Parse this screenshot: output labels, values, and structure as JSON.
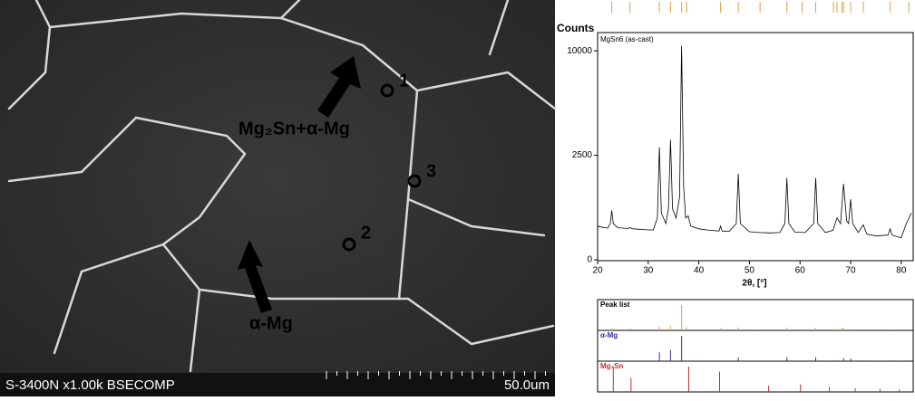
{
  "sem": {
    "labels": [
      "Mg₂Sn+α-Mg",
      "α-Mg"
    ],
    "points": [
      "1",
      "2",
      "3"
    ],
    "footer_left": "S-3400N x1.00k BSECOMP",
    "footer_right": "50.0um"
  },
  "chart_data": {
    "type": "line",
    "y_label": "Counts",
    "x_label": "2θ, [°]",
    "yscale": "sqrt",
    "x": [
      20,
      21,
      22,
      22.5,
      22.8,
      23.1,
      24,
      25,
      26,
      26.4,
      27,
      28,
      29,
      30,
      31,
      31.8,
      32.2,
      32.6,
      33.5,
      34.0,
      34.4,
      34.8,
      35.5,
      36.2,
      36.6,
      37.0,
      37.4,
      37.9,
      38.4,
      40,
      42,
      44,
      44.3,
      44.6,
      46,
      47.4,
      47.8,
      48.2,
      50,
      52,
      54,
      56,
      57.0,
      57.4,
      57.8,
      59,
      61,
      62.7,
      63.1,
      63.5,
      65,
      66.5,
      67.3,
      68.0,
      68.6,
      69.2,
      69.6,
      70.0,
      70.4,
      71.5,
      72.5,
      73.2,
      75,
      77.4,
      77.8,
      78.2,
      80,
      81,
      82
    ],
    "series": [
      {
        "name": "MgSn6 (as-cast)",
        "color": "#000000",
        "values": [
          260,
          240,
          230,
          300,
          560,
          300,
          235,
          230,
          225,
          235,
          220,
          215,
          210,
          205,
          205,
          400,
          2900,
          500,
          300,
          600,
          3300,
          600,
          400,
          900,
          10500,
          1200,
          400,
          440,
          260,
          220,
          200,
          190,
          260,
          190,
          185,
          300,
          1700,
          300,
          180,
          170,
          165,
          170,
          300,
          1530,
          300,
          175,
          170,
          300,
          1530,
          300,
          170,
          200,
          400,
          300,
          1325,
          350,
          300,
          840,
          300,
          170,
          280,
          150,
          130,
          140,
          220,
          140,
          110,
          300,
          500
        ]
      }
    ],
    "xlim": [
      20,
      82
    ],
    "xticks": [
      20,
      30,
      40,
      50,
      60,
      70,
      80
    ],
    "ylim": [
      0,
      11450
    ],
    "yticks": [
      0,
      2500,
      10000
    ],
    "reference_patterns": [
      {
        "name": "Peak list",
        "color": "#e0a040",
        "positions": [
          22.8,
          26.4,
          32.2,
          34.4,
          36.6,
          37.6,
          44.3,
          47.8,
          52.1,
          57.4,
          60.4,
          63.1,
          66.6,
          67.3,
          68.3,
          68.6,
          70.0,
          72.5,
          77.8,
          81.5
        ],
        "intensities": [
          8,
          8,
          15,
          17,
          100,
          12,
          8,
          12,
          5,
          10,
          5,
          10,
          4,
          6,
          10,
          8,
          6,
          4,
          4,
          5
        ]
      },
      {
        "name": "α-Mg",
        "color": "#3030a0",
        "positions": [
          32.2,
          34.4,
          36.6,
          47.8,
          57.4,
          63.1,
          67.3,
          68.6,
          70.0,
          72.5,
          77.8,
          81.5
        ],
        "intensities": [
          35,
          45,
          100,
          15,
          15,
          15,
          3,
          12,
          10,
          3,
          3,
          3
        ]
      },
      {
        "name": "Mg₂Sn",
        "color": "#c03030",
        "positions": [
          23.1,
          26.6,
          38.0,
          44.1,
          53.8,
          60.1,
          65.8,
          70.9,
          75.8,
          79.6
        ],
        "intensities": [
          100,
          55,
          100,
          80,
          25,
          30,
          20,
          15,
          12,
          10
        ]
      }
    ]
  }
}
